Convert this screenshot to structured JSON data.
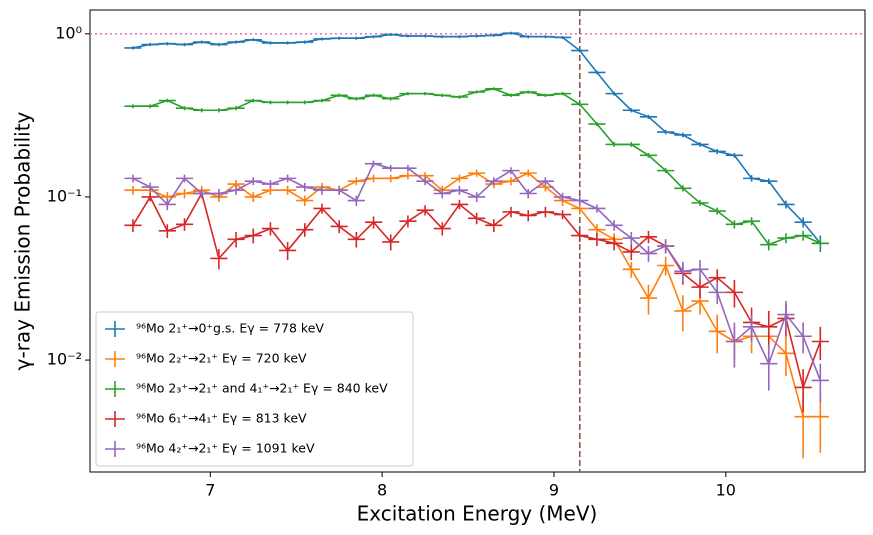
{
  "chart_data": {
    "type": "errorbar_line",
    "xlabel": "Excitation Energy (MeV)",
    "ylabel": "γ-ray Emission Probability",
    "log_y": true,
    "legend": "lower left",
    "xlim": [
      6.3,
      10.81
    ],
    "ylim": [
      0.00206,
      1.4
    ],
    "xticks": [
      7,
      8,
      9,
      10
    ],
    "yticks": [
      {
        "value": 0.01,
        "label": "10⁻²"
      },
      {
        "value": 0.1,
        "label": "10⁻¹"
      },
      {
        "value": 1,
        "label": "10⁰"
      }
    ],
    "xerr": 0.05,
    "x": [
      6.55,
      6.65,
      6.75,
      6.85,
      6.95,
      7.05,
      7.15,
      7.25,
      7.35,
      7.45,
      7.55,
      7.65,
      7.75,
      7.85,
      7.95,
      8.05,
      8.15,
      8.25,
      8.35,
      8.45,
      8.55,
      8.65,
      8.75,
      8.85,
      8.95,
      9.05,
      9.15,
      9.25,
      9.35,
      9.45,
      9.55,
      9.65,
      9.75,
      9.85,
      9.95,
      10.05,
      10.15,
      10.25,
      10.35,
      10.45,
      10.55
    ],
    "reference_lines": [
      {
        "axis": "y",
        "value": 1,
        "color": "#e377c2",
        "style": "dotted"
      },
      {
        "axis": "x",
        "value": 9.15,
        "color": "#8c564b",
        "style": "dashed"
      }
    ],
    "series": [
      {
        "name": "⁹⁶Mo 2₁⁺→0⁺g.s.  Eγ = 778 keV",
        "color": "#1f77b4",
        "values": [
          0.82,
          0.86,
          0.87,
          0.86,
          0.89,
          0.86,
          0.89,
          0.92,
          0.88,
          0.88,
          0.89,
          0.93,
          0.94,
          0.94,
          0.96,
          0.99,
          0.97,
          0.97,
          0.96,
          0.96,
          0.97,
          0.98,
          1.01,
          0.96,
          0.96,
          0.95,
          0.79,
          0.58,
          0.43,
          0.34,
          0.31,
          0.25,
          0.24,
          0.21,
          0.19,
          0.18,
          0.13,
          0.125,
          0.09,
          0.07,
          0.052
        ],
        "errors": [
          0.02,
          0.02,
          0.02,
          0.02,
          0.02,
          0.02,
          0.02,
          0.02,
          0.02,
          0.02,
          0.02,
          0.02,
          0.02,
          0.02,
          0.02,
          0.02,
          0.02,
          0.02,
          0.02,
          0.02,
          0.02,
          0.02,
          0.02,
          0.02,
          0.02,
          0.02,
          0.02,
          0.015,
          0.012,
          0.01,
          0.009,
          0.008,
          0.008,
          0.007,
          0.007,
          0.006,
          0.006,
          0.005,
          0.005,
          0.005,
          0.006
        ]
      },
      {
        "name": "⁹⁶Mo 2₂⁺→2₁⁺ Eγ = 720 keV",
        "color": "#ff7f0e",
        "values": [
          0.11,
          0.11,
          0.1,
          0.105,
          0.11,
          0.1,
          0.12,
          0.1,
          0.11,
          0.11,
          0.095,
          0.115,
          0.11,
          0.125,
          0.13,
          0.13,
          0.135,
          0.135,
          0.11,
          0.13,
          0.14,
          0.12,
          0.125,
          0.14,
          0.115,
          0.095,
          0.085,
          0.063,
          0.055,
          0.036,
          0.024,
          0.038,
          0.02,
          0.023,
          0.015,
          0.013,
          0.014,
          0.014,
          0.011,
          0.0045,
          0.0045
        ],
        "errors": [
          0.007,
          0.007,
          0.007,
          0.007,
          0.007,
          0.007,
          0.007,
          0.007,
          0.007,
          0.007,
          0.007,
          0.007,
          0.007,
          0.007,
          0.007,
          0.007,
          0.007,
          0.007,
          0.007,
          0.007,
          0.007,
          0.007,
          0.007,
          0.007,
          0.007,
          0.007,
          0.006,
          0.005,
          0.005,
          0.004,
          0.005,
          0.005,
          0.005,
          0.004,
          0.004,
          0.003,
          0.003,
          0.003,
          0.003,
          0.002,
          0.0018
        ]
      },
      {
        "name": "⁹⁶Mo 2₃⁺→2₁⁺ and 4₁⁺→2₁⁺ Eγ = 840 keV",
        "color": "#2ca02c",
        "values": [
          0.36,
          0.36,
          0.39,
          0.35,
          0.34,
          0.34,
          0.35,
          0.39,
          0.38,
          0.38,
          0.38,
          0.39,
          0.42,
          0.4,
          0.42,
          0.4,
          0.43,
          0.43,
          0.42,
          0.41,
          0.44,
          0.46,
          0.42,
          0.44,
          0.42,
          0.43,
          0.37,
          0.28,
          0.21,
          0.21,
          0.18,
          0.145,
          0.113,
          0.092,
          0.082,
          0.068,
          0.071,
          0.051,
          0.056,
          0.058,
          0.052
        ],
        "errors": [
          0.01,
          0.01,
          0.01,
          0.01,
          0.01,
          0.01,
          0.01,
          0.01,
          0.01,
          0.01,
          0.01,
          0.01,
          0.01,
          0.01,
          0.01,
          0.01,
          0.01,
          0.01,
          0.01,
          0.01,
          0.01,
          0.01,
          0.01,
          0.01,
          0.01,
          0.01,
          0.01,
          0.008,
          0.007,
          0.007,
          0.006,
          0.005,
          0.005,
          0.004,
          0.004,
          0.004,
          0.004,
          0.004,
          0.004,
          0.004,
          0.004
        ]
      },
      {
        "name": "⁹⁶Mo 6₁⁺→4₁⁺ Eγ = 813 keV",
        "color": "#d62728",
        "values": [
          0.067,
          0.1,
          0.062,
          0.068,
          0.105,
          0.042,
          0.055,
          0.058,
          0.064,
          0.047,
          0.063,
          0.085,
          0.066,
          0.055,
          0.07,
          0.053,
          0.071,
          0.083,
          0.064,
          0.09,
          0.074,
          0.067,
          0.081,
          0.077,
          0.081,
          0.078,
          0.058,
          0.055,
          0.052,
          0.046,
          0.057,
          0.05,
          0.034,
          0.028,
          0.032,
          0.026,
          0.017,
          0.016,
          0.018,
          0.0068,
          0.013
        ],
        "errors": [
          0.006,
          0.006,
          0.006,
          0.006,
          0.006,
          0.006,
          0.006,
          0.006,
          0.006,
          0.006,
          0.006,
          0.006,
          0.006,
          0.006,
          0.006,
          0.006,
          0.006,
          0.006,
          0.006,
          0.006,
          0.006,
          0.006,
          0.006,
          0.006,
          0.006,
          0.005,
          0.005,
          0.005,
          0.005,
          0.005,
          0.005,
          0.005,
          0.005,
          0.004,
          0.004,
          0.005,
          0.004,
          0.004,
          0.004,
          0.002,
          0.003
        ]
      },
      {
        "name": "⁹⁶Mo 4₂⁺→2₁⁺ Eγ = 1091 keV",
        "color": "#9467bd",
        "values": [
          0.13,
          0.115,
          0.09,
          0.13,
          0.105,
          0.105,
          0.11,
          0.125,
          0.12,
          0.13,
          0.115,
          0.11,
          0.11,
          0.095,
          0.16,
          0.15,
          0.15,
          0.125,
          0.105,
          0.11,
          0.1,
          0.125,
          0.145,
          0.105,
          0.125,
          0.1,
          0.095,
          0.085,
          0.067,
          0.056,
          0.045,
          0.05,
          0.035,
          0.036,
          0.026,
          0.013,
          0.016,
          0.0095,
          0.019,
          0.014,
          0.0075
        ],
        "errors": [
          0.007,
          0.007,
          0.007,
          0.007,
          0.007,
          0.007,
          0.007,
          0.007,
          0.007,
          0.007,
          0.007,
          0.007,
          0.007,
          0.007,
          0.007,
          0.007,
          0.007,
          0.007,
          0.007,
          0.007,
          0.007,
          0.007,
          0.007,
          0.007,
          0.007,
          0.006,
          0.006,
          0.005,
          0.005,
          0.005,
          0.005,
          0.005,
          0.005,
          0.005,
          0.004,
          0.004,
          0.003,
          0.003,
          0.004,
          0.003,
          0.002
        ]
      }
    ]
  }
}
